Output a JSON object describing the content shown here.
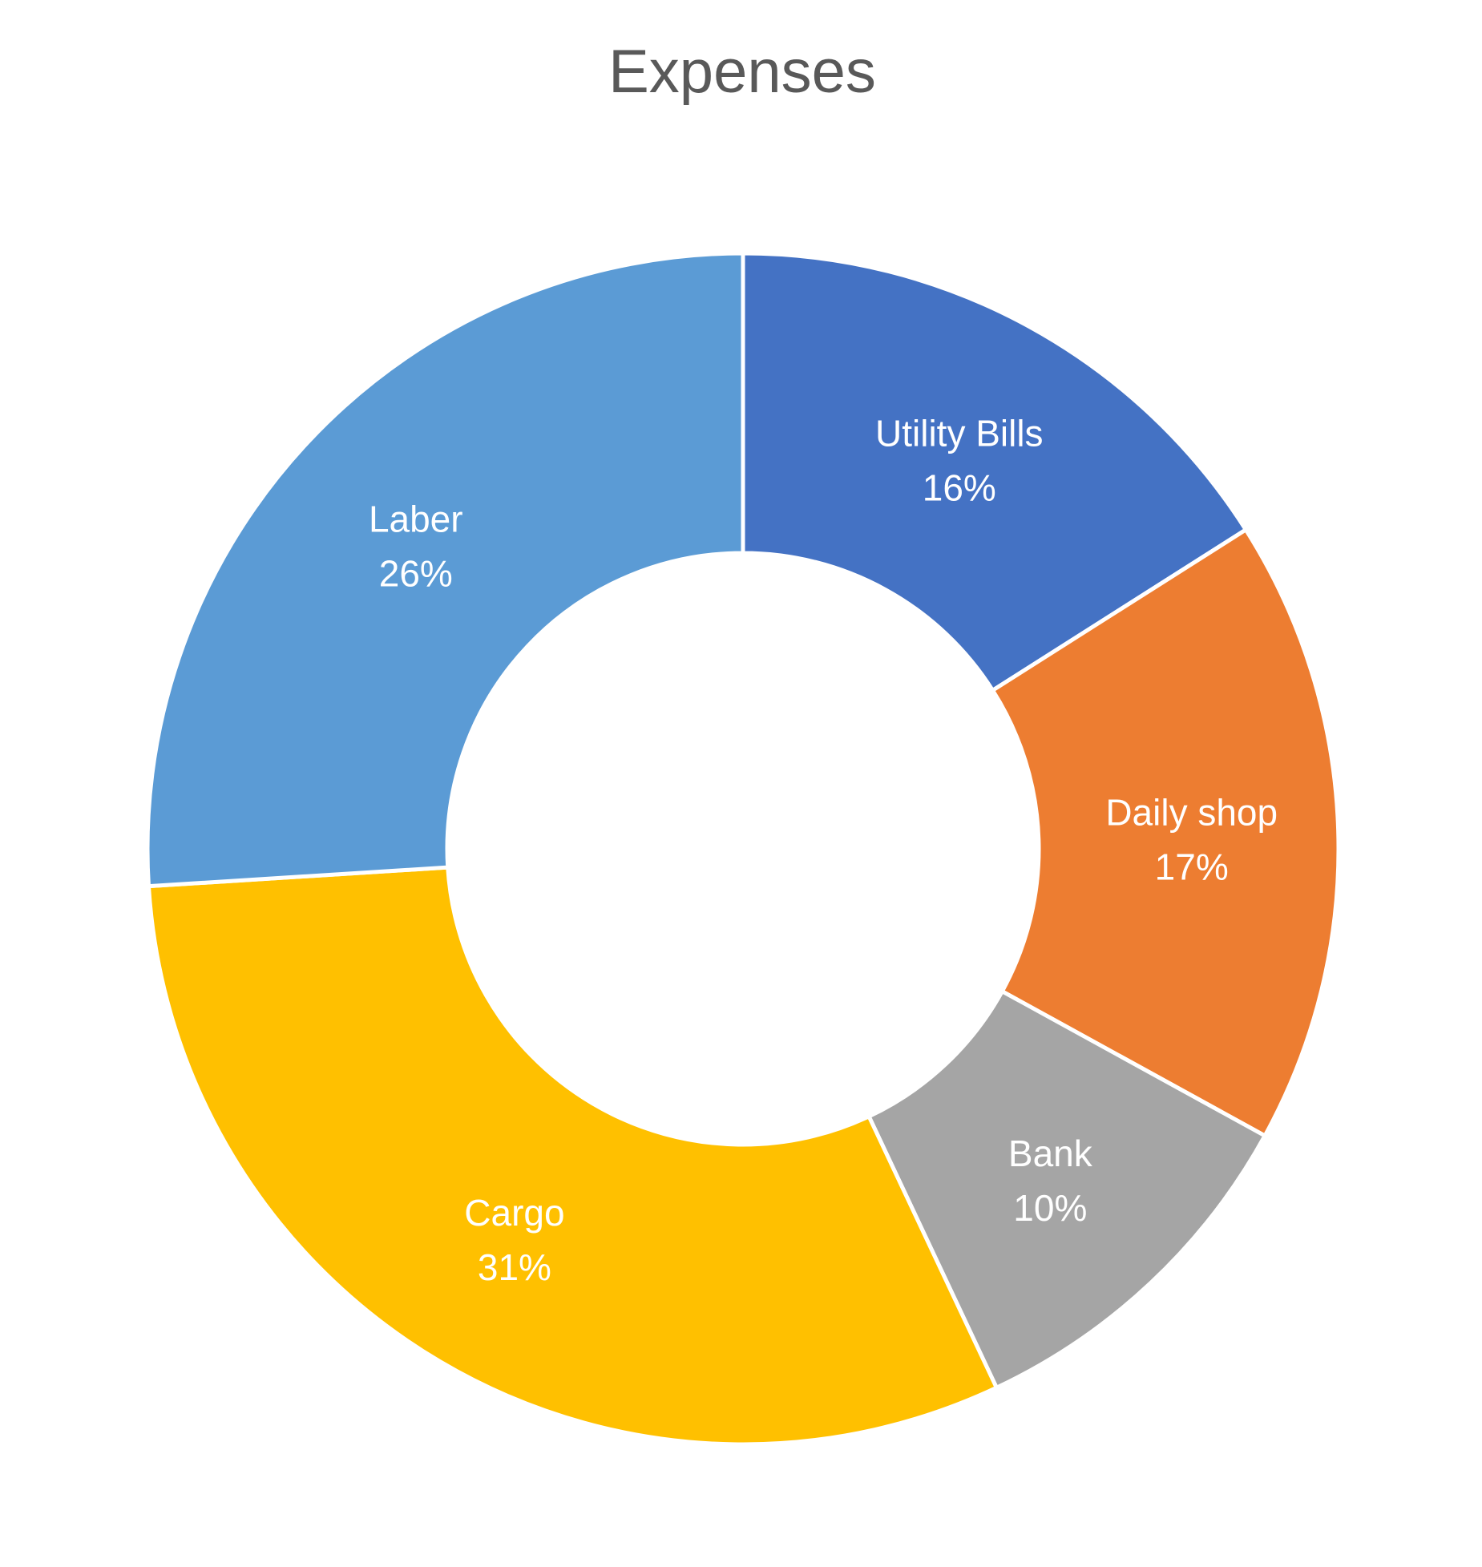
{
  "chart_data": {
    "type": "pie",
    "variant": "donut",
    "title": "Expenses",
    "categories": [
      "Utility Bills",
      "Daily shop",
      "Bank",
      "Cargo",
      "Laber"
    ],
    "values": [
      16,
      17,
      10,
      31,
      26
    ],
    "value_labels": [
      "16%",
      "17%",
      "10%",
      "31%",
      "26%"
    ],
    "colors": [
      "#4472C4",
      "#ED7D31",
      "#A5A5A5",
      "#FFC000",
      "#5B9BD5"
    ],
    "label_color": "#FFFFFF",
    "title_color": "#595959",
    "legend": "none",
    "start_angle": "12 o'clock",
    "direction": "clockwise"
  }
}
